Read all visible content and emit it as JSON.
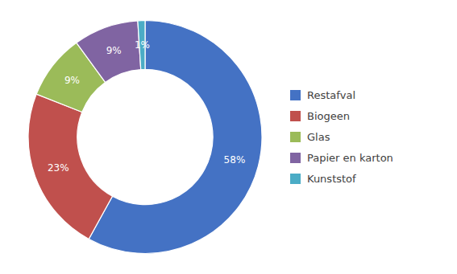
{
  "chart_data": {
    "type": "donut",
    "categories": [
      "Restafval",
      "Biogeen",
      "Glas",
      "Papier en karton",
      "Kunststof"
    ],
    "values": [
      58,
      23,
      9,
      9,
      1
    ],
    "value_labels": [
      "58%",
      "23%",
      "9%",
      "9%",
      "1%"
    ],
    "colors": [
      "#4472C4",
      "#C0504D",
      "#9BBB59",
      "#8064A2",
      "#4BACC6"
    ],
    "data_labels": true,
    "legend": "right"
  }
}
